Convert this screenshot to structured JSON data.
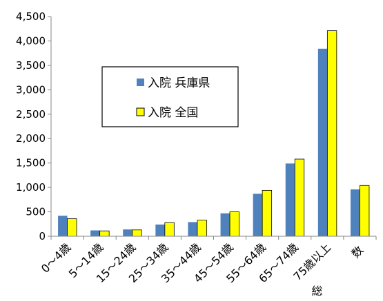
{
  "chart_data": {
    "type": "bar",
    "categories": [
      "0～4歳",
      "5～14歳",
      "15～24歳",
      "25～34歳",
      "35～44歳",
      "45～54歳",
      "55～64歳",
      "65～74歳",
      "75歳以上",
      "総数"
    ],
    "series": [
      {
        "name": "入院 兵庫県",
        "color": "#4f81bd",
        "values": [
          420,
          120,
          140,
          240,
          290,
          470,
          870,
          1490,
          3840,
          960
        ]
      },
      {
        "name": "入院 全国",
        "color": "#ffff00",
        "values": [
          360,
          110,
          130,
          280,
          330,
          500,
          940,
          1580,
          4210,
          1040
        ]
      }
    ],
    "yticks": [
      "0",
      "500",
      "1,000",
      "1,500",
      "2,000",
      "2,500",
      "3,000",
      "3,500",
      "4,000",
      "4,500"
    ],
    "ylim": [
      0,
      4500
    ],
    "grid": false,
    "legend_position": "upper-left inside plot"
  }
}
